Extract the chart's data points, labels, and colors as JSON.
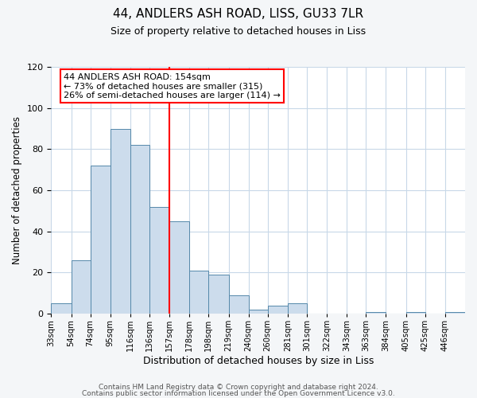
{
  "title": "44, ANDLERS ASH ROAD, LISS, GU33 7LR",
  "subtitle": "Size of property relative to detached houses in Liss",
  "xlabel": "Distribution of detached houses by size in Liss",
  "ylabel": "Number of detached properties",
  "bin_labels": [
    "33sqm",
    "54sqm",
    "74sqm",
    "95sqm",
    "116sqm",
    "136sqm",
    "157sqm",
    "178sqm",
    "198sqm",
    "219sqm",
    "240sqm",
    "260sqm",
    "281sqm",
    "301sqm",
    "322sqm",
    "343sqm",
    "363sqm",
    "384sqm",
    "405sqm",
    "425sqm",
    "446sqm"
  ],
  "bin_edges": [
    33,
    54,
    74,
    95,
    116,
    136,
    157,
    178,
    198,
    219,
    240,
    260,
    281,
    301,
    322,
    343,
    363,
    384,
    405,
    425,
    446
  ],
  "bar_heights": [
    5,
    26,
    72,
    90,
    82,
    52,
    45,
    21,
    19,
    9,
    2,
    4,
    5,
    0,
    0,
    0,
    1,
    0,
    1,
    0,
    1
  ],
  "bar_color": "#ccdcec",
  "bar_edge_color": "#5588aa",
  "vline_x": 157,
  "vline_color": "red",
  "annotation_line1": "44 ANDLERS ASH ROAD: 154sqm",
  "annotation_line2": "← 73% of detached houses are smaller (315)",
  "annotation_line3": "26% of semi-detached houses are larger (114) →",
  "ylim": [
    0,
    120
  ],
  "yticks": [
    0,
    20,
    40,
    60,
    80,
    100,
    120
  ],
  "footnote1": "Contains HM Land Registry data © Crown copyright and database right 2024.",
  "footnote2": "Contains public sector information licensed under the Open Government Licence v3.0.",
  "background_color": "#f4f6f8",
  "plot_background_color": "#ffffff"
}
